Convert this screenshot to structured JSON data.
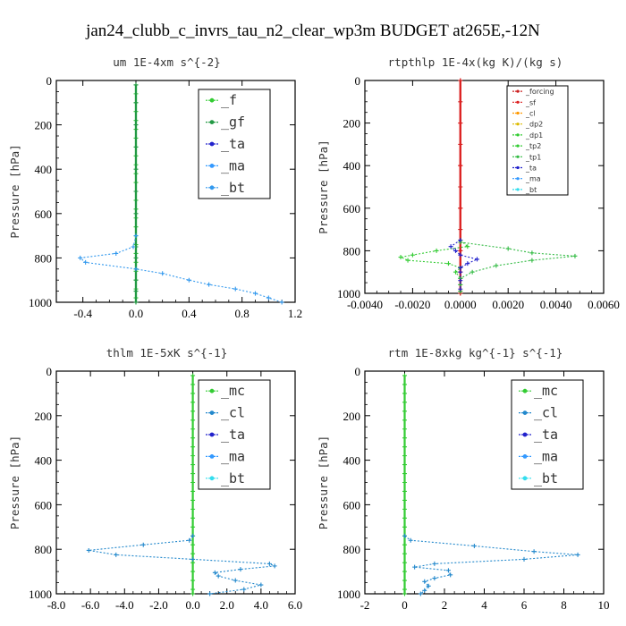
{
  "figure_title": "jan24_clubb_c_invrs_tau_n2_clear_wp3m  BUDGET at265E,-12N",
  "chart_data": [
    {
      "type": "line",
      "title": "um  1E-4xm s^{-2}",
      "ylabel": "Pressure [hPa]",
      "xlim": [
        -0.6,
        1.2
      ],
      "ylim": [
        1000,
        0
      ],
      "xticks": [
        "-0.4",
        "0.0",
        "0.4",
        "0.8",
        "1.2"
      ],
      "xtick_values": [
        -0.4,
        0.0,
        0.4,
        0.8,
        1.2
      ],
      "yticks": [
        "0",
        "200",
        "400",
        "600",
        "800",
        "1000"
      ],
      "ytick_values": [
        0,
        200,
        400,
        600,
        800,
        1000
      ],
      "legend": "top-right",
      "series": [
        {
          "name": "_f",
          "color": "#33cc33",
          "y": [
            20,
            60,
            100,
            140,
            180,
            220,
            260,
            300,
            340,
            380,
            420,
            460,
            500,
            540,
            580,
            620,
            660,
            700,
            740,
            780,
            820,
            860,
            900,
            940,
            980,
            1000
          ],
          "x": [
            0,
            0,
            0,
            0,
            0,
            0,
            0,
            0,
            0,
            0,
            0,
            0,
            0,
            0,
            0,
            0,
            0,
            0,
            0,
            0,
            0,
            0,
            0,
            0,
            0,
            0
          ]
        },
        {
          "name": "_gf",
          "color": "#229944",
          "y": [
            20,
            100,
            200,
            300,
            400,
            500,
            600,
            700,
            750,
            800,
            850,
            900,
            950,
            1000
          ],
          "x": [
            0,
            0,
            0,
            0,
            0,
            0,
            0,
            0,
            0,
            0,
            0,
            0,
            0,
            0
          ]
        },
        {
          "name": "_ta",
          "color": "#2222cc",
          "y": [],
          "x": []
        },
        {
          "name": "_ma",
          "color": "#3399ff",
          "y": [],
          "x": []
        },
        {
          "name": "_bt",
          "color": "#3399ee",
          "y": [
            700,
            750,
            780,
            800,
            820,
            850,
            870,
            900,
            920,
            940,
            960,
            980,
            1000
          ],
          "x": [
            0.0,
            -0.02,
            -0.15,
            -0.42,
            -0.38,
            0.0,
            0.2,
            0.4,
            0.55,
            0.75,
            0.9,
            1.0,
            1.1
          ]
        }
      ]
    },
    {
      "type": "line",
      "title": "rtpthlp  1E-4x(kg K)/(kg s)",
      "ylabel": "Pressure [hPa]",
      "xlim": [
        -0.004,
        0.006
      ],
      "ylim": [
        1000,
        0
      ],
      "xticks": [
        "-0.0040",
        "-0.0020",
        "0.0000",
        "0.0020",
        "0.0040",
        "0.0060"
      ],
      "xtick_values": [
        -0.004,
        -0.002,
        0.0,
        0.002,
        0.004,
        0.006
      ],
      "yticks": [
        "0",
        "200",
        "400",
        "600",
        "800",
        "1000"
      ],
      "ytick_values": [
        0,
        200,
        400,
        600,
        800,
        1000
      ],
      "legend": "top-right",
      "series": [
        {
          "name": "_forcing",
          "color": "#cc2222",
          "y": [
            0,
            100,
            200,
            300,
            400,
            500,
            600,
            700,
            800,
            900,
            1000
          ],
          "x": [
            0,
            0,
            0,
            0,
            0,
            0,
            0,
            0,
            0,
            0,
            0
          ]
        },
        {
          "name": "_sf",
          "color": "#dd2222",
          "y": [
            0,
            200,
            400,
            600,
            800,
            1000
          ],
          "x": [
            0,
            0,
            0,
            0,
            0,
            0
          ]
        },
        {
          "name": "_cl",
          "color": "#ff9900",
          "y": [],
          "x": []
        },
        {
          "name": "_dp2",
          "color": "#ddbb00",
          "y": [],
          "x": []
        },
        {
          "name": "_dp1",
          "color": "#33cc33",
          "y": [],
          "x": []
        },
        {
          "name": "_tp2",
          "color": "#33cc33",
          "y": [
            750,
            780,
            800,
            820,
            830,
            845,
            860,
            880,
            900,
            930,
            960,
            990
          ],
          "x": [
            0.0,
            0.0003,
            -0.001,
            -0.002,
            -0.0025,
            -0.0022,
            -0.0005,
            0.0,
            -0.0002,
            0.0,
            0.0,
            0.0
          ]
        },
        {
          "name": "_tp1",
          "color": "#33bb44",
          "y": [
            760,
            790,
            810,
            825,
            845,
            870,
            900,
            930,
            960,
            990
          ],
          "x": [
            0.0,
            0.002,
            0.003,
            0.0048,
            0.003,
            0.0015,
            0.0005,
            0.0,
            0.0,
            0.0
          ]
        },
        {
          "name": "_ta",
          "color": "#2222cc",
          "y": [
            750,
            780,
            800,
            820,
            840,
            860,
            880,
            900,
            940,
            980
          ],
          "x": [
            0.0,
            -0.0004,
            -0.0002,
            0.0,
            0.0007,
            0.0003,
            0.0,
            0.0,
            0.0,
            0.0
          ]
        },
        {
          "name": "_ma",
          "color": "#3399ff",
          "y": [],
          "x": []
        },
        {
          "name": "_bt",
          "color": "#33ddee",
          "y": [],
          "x": []
        }
      ]
    },
    {
      "type": "line",
      "title": "thlm  1E-5xK s^{-1}",
      "ylabel": "Pressure [hPa]",
      "xlim": [
        -8.0,
        6.0
      ],
      "ylim": [
        1000,
        0
      ],
      "xticks": [
        "-8.0",
        "-6.0",
        "-4.0",
        "-2.0",
        "0.0",
        "2.0",
        "4.0",
        "6.0"
      ],
      "xtick_values": [
        -8,
        -6,
        -4,
        -2,
        0,
        2,
        4,
        6
      ],
      "yticks": [
        "0",
        "200",
        "400",
        "600",
        "800",
        "1000"
      ],
      "ytick_values": [
        0,
        200,
        400,
        600,
        800,
        1000
      ],
      "legend": "top-right",
      "series": [
        {
          "name": "_mc",
          "color": "#33cc33",
          "y": [
            20,
            60,
            100,
            140,
            180,
            220,
            260,
            300,
            340,
            380,
            420,
            460,
            500,
            540,
            580,
            620,
            660,
            700,
            740,
            780,
            820,
            860,
            900,
            940,
            980,
            1000
          ],
          "x": [
            0,
            0,
            0,
            0,
            0,
            0,
            0,
            0,
            0,
            0,
            0,
            0,
            0,
            0,
            0,
            0,
            0,
            0,
            0,
            0,
            0,
            0,
            0,
            0,
            0,
            0
          ]
        },
        {
          "name": "_cl",
          "color": "#2288cc",
          "y": [
            740,
            760,
            780,
            805,
            825,
            845,
            865,
            875,
            890,
            905,
            920,
            940,
            960,
            980,
            1000
          ],
          "x": [
            0.0,
            -0.2,
            -2.9,
            -6.1,
            -4.5,
            0.0,
            4.5,
            4.8,
            2.8,
            1.3,
            1.5,
            2.5,
            4.0,
            3.0,
            1.0
          ]
        },
        {
          "name": "_ta",
          "color": "#2222cc",
          "y": [],
          "x": []
        },
        {
          "name": "_ma",
          "color": "#3399ff",
          "y": [],
          "x": []
        },
        {
          "name": "_bt",
          "color": "#33ddee",
          "y": [],
          "x": []
        }
      ]
    },
    {
      "type": "line",
      "title": "rtm  1E-8xkg kg^{-1} s^{-1}",
      "ylabel": "Pressure [hPa]",
      "xlim": [
        -2,
        10
      ],
      "ylim": [
        1000,
        0
      ],
      "xticks": [
        "-2",
        "0",
        "2",
        "4",
        "6",
        "8",
        "10"
      ],
      "xtick_values": [
        -2,
        0,
        2,
        4,
        6,
        8,
        10
      ],
      "yticks": [
        "0",
        "200",
        "400",
        "600",
        "800",
        "1000"
      ],
      "ytick_values": [
        0,
        200,
        400,
        600,
        800,
        1000
      ],
      "legend": "top-right",
      "series": [
        {
          "name": "_mc",
          "color": "#33cc33",
          "y": [
            20,
            60,
            100,
            140,
            180,
            220,
            260,
            300,
            340,
            380,
            420,
            460,
            500,
            540,
            580,
            620,
            660,
            700,
            740,
            780,
            820,
            860,
            900,
            940,
            980,
            1000
          ],
          "x": [
            0,
            0,
            0,
            0,
            0,
            0,
            0,
            0,
            0,
            0,
            0,
            0,
            0,
            0,
            0,
            0,
            0,
            0,
            0,
            0,
            0,
            0,
            0,
            0,
            0,
            0
          ]
        },
        {
          "name": "_cl",
          "color": "#2288cc",
          "y": [
            740,
            760,
            785,
            810,
            825,
            845,
            865,
            880,
            895,
            915,
            930,
            945,
            965,
            985,
            1000
          ],
          "x": [
            0.0,
            0.3,
            3.5,
            6.5,
            8.7,
            6.0,
            1.5,
            0.5,
            2.2,
            2.3,
            1.5,
            1.0,
            1.2,
            1.0,
            0.8
          ]
        },
        {
          "name": "_ta",
          "color": "#2222cc",
          "y": [],
          "x": []
        },
        {
          "name": "_ma",
          "color": "#3399ff",
          "y": [],
          "x": []
        },
        {
          "name": "_bt",
          "color": "#33ddee",
          "y": [],
          "x": []
        }
      ]
    }
  ]
}
